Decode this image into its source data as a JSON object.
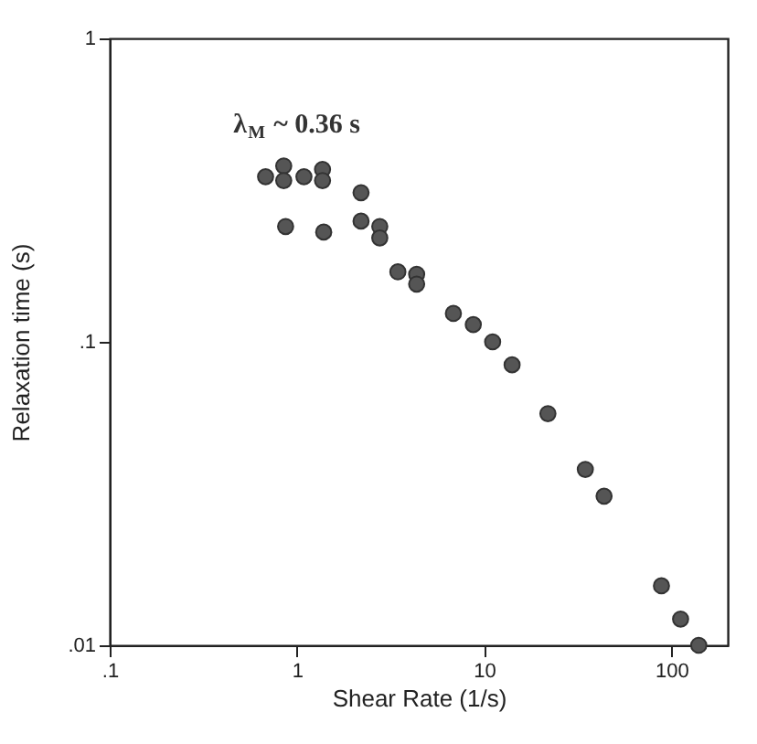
{
  "chart_data": {
    "type": "scatter",
    "xlabel": "Shear Rate (1/s)",
    "ylabel": "Relaxation time (s)",
    "log": "xy",
    "marker": "circle",
    "grid": false,
    "xlim": [
      0.1,
      200
    ],
    "ylim": [
      0.01,
      1
    ],
    "xticks": [
      {
        "value": 0.1,
        "label": ".1"
      },
      1,
      10,
      100
    ],
    "yticks": [
      {
        "value": 0.01,
        "label": ".01"
      },
      {
        "value": 0.1,
        "label": ".1"
      },
      1
    ],
    "annotations": [
      "λ$_{M}$ ~ 0.36 s"
    ],
    "series": [
      {
        "color": "#555555",
        "x": [
          0.68,
          0.85,
          0.85,
          1.09,
          1.37,
          1.37,
          0.87,
          1.39,
          2.2,
          2.2,
          2.77,
          2.77,
          3.46,
          4.36,
          4.36,
          6.85,
          8.75,
          11.1,
          14.1,
          21.9,
          34.7,
          43.7,
          88.5,
          112,
          140
        ],
        "values": [
          0.35,
          0.38,
          0.34,
          0.35,
          0.37,
          0.34,
          0.24,
          0.23,
          0.31,
          0.25,
          0.24,
          0.22,
          0.17,
          0.167,
          0.155,
          0.124,
          0.114,
          0.1,
          0.084,
          0.058,
          0.038,
          0.031,
          0.0157,
          0.0122,
          0.01
        ]
      }
    ]
  }
}
